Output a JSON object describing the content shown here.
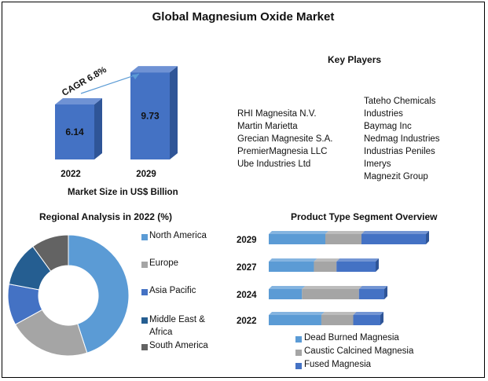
{
  "title": "Global Magnesium Oxide Market",
  "market_size": {
    "cagr_label": "CAGR 6.8%",
    "xlabel": "Market Size in US$ Billion"
  },
  "key_players": {
    "heading": "Key Players",
    "left": [
      "RHI Magnesita N.V.",
      "Martin Marietta",
      "Grecian Magnesite S.A.",
      "PremierMagnesia LLC",
      "Ube Industries Ltd"
    ],
    "right": [
      "Tateho Chemicals",
      "Industries",
      "Baymag Inc",
      "Nedmag Industries",
      "Industrias Peniles",
      "Imerys",
      "Magnezit Group"
    ]
  },
  "regional": {
    "title": "Regional Analysis in 2022 (%)"
  },
  "product": {
    "title": "Product Type  Segment Overview"
  },
  "colors": {
    "bar_front": "#4472c4",
    "bar_side": "#2f5597",
    "bar_top": "#6f92d4",
    "north_america": "#5b9bd5",
    "europe": "#a5a5a5",
    "asia_pacific": "#4472c4",
    "middle_east_africa": "#255e91",
    "south_america": "#636363",
    "dead_burned": "#5b9bd5",
    "caustic_calcined": "#a5a5a5",
    "fused": "#4472c4"
  },
  "chart_data": [
    {
      "type": "bar",
      "categories": [
        "2022",
        "2029"
      ],
      "values": [
        6.14,
        9.73
      ],
      "xlabel": "Market Size in US$ Billion",
      "annotation": "CAGR 6.8%"
    },
    {
      "type": "pie",
      "title": "Regional Analysis in 2022 (%)",
      "labels": [
        "North America",
        "Europe",
        "Asia Pacific",
        "Middle East & Africa",
        "South America"
      ],
      "values": [
        45,
        22,
        11,
        12,
        10
      ],
      "colors": [
        "#5b9bd5",
        "#a5a5a5",
        "#4472c4",
        "#255e91",
        "#636363"
      ],
      "legend": "right"
    },
    {
      "type": "bar",
      "orientation": "horizontal",
      "stacked": true,
      "title": "Product Type  Segment Overview",
      "categories": [
        "2029",
        "2027",
        "2024",
        "2022"
      ],
      "series": [
        {
          "name": "Dead Burned Magnesia",
          "values": [
            36,
            30,
            21,
            33
          ]
        },
        {
          "name": "Caustic Calcined Magnesia",
          "values": [
            23,
            15,
            36,
            20
          ]
        },
        {
          "name": "Fused Magnesia",
          "values": [
            41,
            26,
            16,
            17
          ]
        }
      ],
      "legend": "bottom"
    }
  ]
}
